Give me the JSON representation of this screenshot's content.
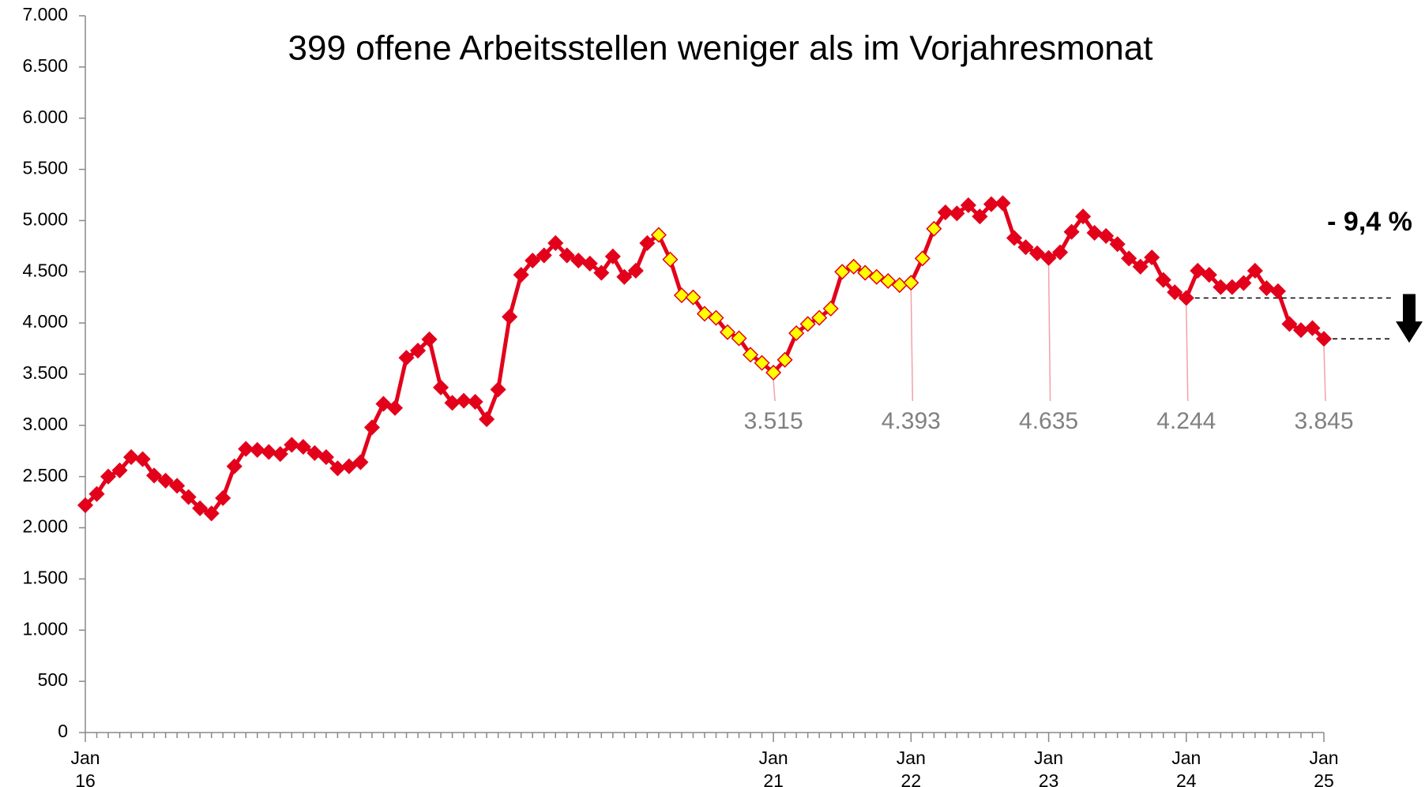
{
  "chart_data": {
    "type": "line",
    "title": "399 offene Arbeitsstellen weniger als im Vorjahresmonat",
    "annotation": "- 9,4 %",
    "categories": [
      "Jan\n16",
      null,
      null,
      null,
      null,
      null,
      null,
      null,
      null,
      null,
      null,
      null,
      null,
      null,
      null,
      null,
      null,
      null,
      null,
      null,
      null,
      null,
      null,
      null,
      null,
      null,
      null,
      null,
      null,
      null,
      null,
      null,
      null,
      null,
      null,
      null,
      null,
      null,
      null,
      null,
      null,
      null,
      null,
      null,
      null,
      null,
      null,
      null,
      null,
      null,
      null,
      null,
      null,
      null,
      null,
      null,
      null,
      null,
      null,
      null,
      "Jan\n21",
      null,
      null,
      null,
      null,
      null,
      null,
      null,
      null,
      null,
      null,
      null,
      "Jan\n22",
      null,
      null,
      null,
      null,
      null,
      null,
      null,
      null,
      null,
      null,
      null,
      "Jan\n23",
      null,
      null,
      null,
      null,
      null,
      null,
      null,
      null,
      null,
      null,
      null,
      "Jan\n24",
      null,
      null,
      null,
      null,
      null,
      null,
      null,
      null,
      null,
      null,
      null,
      "Jan\n25"
    ],
    "series": [
      {
        "name": null,
        "color": "#e3001b",
        "values": [
          2220,
          2330,
          2500,
          2560,
          2690,
          2670,
          2510,
          2460,
          2410,
          2300,
          2190,
          2140,
          2290,
          2600,
          2770,
          2760,
          2740,
          2720,
          2810,
          2790,
          2730,
          2690,
          2580,
          2600,
          2640,
          2980,
          3210,
          3170,
          3660,
          3730,
          3840,
          3370,
          3220,
          3240,
          3230,
          3060,
          3350,
          4060,
          4470,
          4610,
          4660,
          4780,
          4660,
          4610,
          4580,
          4490,
          4650,
          4450,
          4510,
          4780,
          4860,
          4620,
          4270,
          4250,
          4090,
          4050,
          3910,
          3850,
          3690,
          3610,
          3515,
          3640,
          3900,
          3990,
          4050,
          4140,
          4500,
          4550,
          4490,
          4450,
          4410,
          4370,
          4393,
          4630,
          4920,
          5080,
          5070,
          5150,
          5040,
          5160,
          5170,
          4830,
          4740,
          4680,
          4635,
          4690,
          4890,
          5040,
          4880,
          4850,
          4770,
          4630,
          4550,
          4640,
          4420,
          4300,
          4244,
          4510,
          4470,
          4350,
          4350,
          4390,
          4510,
          4340,
          4310,
          3990,
          3930,
          3950,
          3845
        ],
        "value_labels": [
          null,
          null,
          null,
          null,
          null,
          null,
          null,
          null,
          null,
          null,
          null,
          null,
          null,
          null,
          null,
          null,
          null,
          null,
          null,
          null,
          null,
          null,
          null,
          null,
          null,
          null,
          null,
          null,
          null,
          null,
          null,
          null,
          null,
          null,
          null,
          null,
          null,
          null,
          null,
          null,
          null,
          null,
          null,
          null,
          null,
          null,
          null,
          null,
          null,
          null,
          null,
          null,
          null,
          null,
          null,
          null,
          null,
          null,
          null,
          null,
          "3.515",
          null,
          null,
          null,
          null,
          null,
          null,
          null,
          null,
          null,
          null,
          null,
          "4.393",
          null,
          null,
          null,
          null,
          null,
          null,
          null,
          null,
          null,
          null,
          null,
          "4.635",
          null,
          null,
          null,
          null,
          null,
          null,
          null,
          null,
          null,
          null,
          null,
          "4.244",
          null,
          null,
          null,
          null,
          null,
          null,
          null,
          null,
          null,
          null,
          null,
          "3.845"
        ],
        "marker_colors": [
          "#e3001b",
          "#e3001b",
          "#e3001b",
          "#e3001b",
          "#e3001b",
          "#e3001b",
          "#e3001b",
          "#e3001b",
          "#e3001b",
          "#e3001b",
          "#e3001b",
          "#e3001b",
          "#e3001b",
          "#e3001b",
          "#e3001b",
          "#e3001b",
          "#e3001b",
          "#e3001b",
          "#e3001b",
          "#e3001b",
          "#e3001b",
          "#e3001b",
          "#e3001b",
          "#e3001b",
          "#e3001b",
          "#e3001b",
          "#e3001b",
          "#e3001b",
          "#e3001b",
          "#e3001b",
          "#e3001b",
          "#e3001b",
          "#e3001b",
          "#e3001b",
          "#e3001b",
          "#e3001b",
          "#e3001b",
          "#e3001b",
          "#e3001b",
          "#e3001b",
          "#e3001b",
          "#e3001b",
          "#e3001b",
          "#e3001b",
          "#e3001b",
          "#e3001b",
          "#e3001b",
          "#e3001b",
          "#e3001b",
          "#e3001b",
          "#ffff00",
          "#ffff00",
          "#ffff00",
          "#ffff00",
          "#ffff00",
          "#ffff00",
          "#ffff00",
          "#ffff00",
          "#ffff00",
          "#ffff00",
          "#ffff00",
          "#ffff00",
          "#ffff00",
          "#ffff00",
          "#ffff00",
          "#ffff00",
          "#ffff00",
          "#ffff00",
          "#ffff00",
          "#ffff00",
          "#ffff00",
          "#ffff00",
          "#ffff00",
          "#ffff00",
          "#ffff00",
          "#e3001b",
          "#e3001b",
          "#e3001b",
          "#e3001b",
          "#e3001b",
          "#e3001b",
          "#e3001b",
          "#e3001b",
          "#e3001b",
          "#e3001b",
          "#e3001b",
          "#e3001b",
          "#e3001b",
          "#e3001b",
          "#e3001b",
          "#e3001b",
          "#e3001b",
          "#e3001b",
          "#e3001b",
          "#e3001b",
          "#e3001b",
          "#e3001b",
          "#e3001b",
          "#e3001b",
          "#e3001b",
          "#e3001b",
          "#e3001b",
          "#e3001b",
          "#e3001b",
          "#e3001b",
          "#e3001b",
          "#e3001b",
          "#e3001b",
          "#e3001b"
        ]
      }
    ],
    "ylim": [
      0,
      7000
    ],
    "yticks": [
      0,
      500,
      {
        "value": 1000,
        "label": "1.000"
      },
      {
        "value": 1500,
        "label": "1.500"
      },
      {
        "value": 2000,
        "label": "2.000"
      },
      {
        "value": 2500,
        "label": "2.500"
      },
      {
        "value": 3000,
        "label": "3.000"
      },
      {
        "value": 3500,
        "label": "3.500"
      },
      {
        "value": 4000,
        "label": "4.000"
      },
      {
        "value": 4500,
        "label": "4.500"
      },
      {
        "value": 5000,
        "label": "5.000"
      },
      {
        "value": 5500,
        "label": "5.500"
      },
      {
        "value": 6000,
        "label": "6.000"
      },
      {
        "value": 6500,
        "label": "6.500"
      },
      {
        "value": 7000,
        "label": "7.000"
      }
    ],
    "grid": false
  }
}
